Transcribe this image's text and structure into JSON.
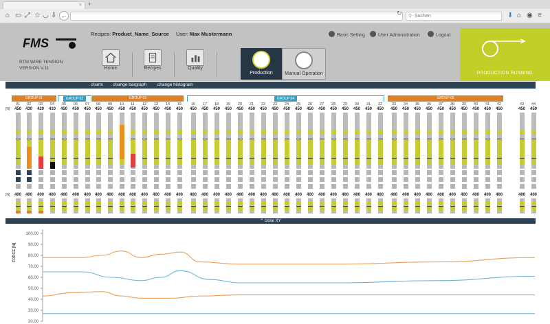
{
  "browser": {
    "tab_title": "",
    "search_placeholder": "Suchen"
  },
  "app": {
    "title_line1": "RTM WIRE TENSION",
    "title_line2": "VERSION V.11",
    "recipes_label": "Recipes:",
    "recipe_name": "Product_Name_Source",
    "user_label": "User:",
    "user_name": "Max Mustermann",
    "nav": [
      {
        "label": "Home",
        "icon": "house-icon"
      },
      {
        "label": "Recipes",
        "icon": "document-icon"
      },
      {
        "label": "Quality",
        "icon": "bar-chart-icon"
      }
    ],
    "production_label": "Production",
    "manual_label": "Manual Operation",
    "basic_setting": "Basic Setting",
    "user_admin": "User Administration",
    "logout": "Logout",
    "status": "PRODUCTION RUNNING"
  },
  "subnav": {
    "charts": "charts",
    "bargraph": "change bargraph",
    "histogram": "change histogram"
  },
  "colors": {
    "accent_lime": "#c3cf29",
    "bar_yellow": "#c6cc34",
    "group_orange": "#d9822b",
    "group_blue": "#3a9ec0",
    "dark_navy": "#2d4456"
  },
  "unit_label": "[N]",
  "groups": [
    {
      "label": "GROUP 01",
      "color": "orange"
    },
    {
      "label": "GROUP 02",
      "color": "blue"
    },
    {
      "label": "GROUP 03",
      "color": "orange"
    },
    {
      "label": "GROUP 04",
      "color": "blue"
    },
    {
      "label": "GROUP 05",
      "color": "orange"
    }
  ],
  "channels": [
    {
      "num": "01",
      "max": "450",
      "min": "400"
    },
    {
      "num": "02",
      "max": "430",
      "min": "400"
    },
    {
      "num": "03",
      "max": "420",
      "min": "400"
    },
    {
      "num": "04",
      "max": "410",
      "min": "400"
    },
    {
      "num": "05",
      "max": "450",
      "min": "400"
    },
    {
      "num": "06",
      "max": "450",
      "min": "400"
    },
    {
      "num": "07",
      "max": "450",
      "min": "400"
    },
    {
      "num": "08",
      "max": "450",
      "min": "400"
    },
    {
      "num": "09",
      "max": "450",
      "min": "400"
    },
    {
      "num": "10",
      "max": "450",
      "min": "400"
    },
    {
      "num": "11",
      "max": "450",
      "min": "400"
    },
    {
      "num": "12",
      "max": "450",
      "min": "400"
    },
    {
      "num": "13",
      "max": "450",
      "min": "400"
    },
    {
      "num": "14",
      "max": "450",
      "min": "400"
    },
    {
      "num": "15",
      "max": "450",
      "min": "400"
    },
    {
      "num": "16",
      "max": "450",
      "min": "400"
    },
    {
      "num": "17",
      "max": "450",
      "min": "400"
    },
    {
      "num": "18",
      "max": "450",
      "min": "400"
    },
    {
      "num": "19",
      "max": "450",
      "min": "400"
    },
    {
      "num": "20",
      "max": "450",
      "min": "400"
    },
    {
      "num": "21",
      "max": "450",
      "min": "400"
    },
    {
      "num": "22",
      "max": "450",
      "min": "400"
    },
    {
      "num": "23",
      "max": "450",
      "min": "400"
    },
    {
      "num": "24",
      "max": "450",
      "min": "400"
    },
    {
      "num": "25",
      "max": "450",
      "min": "400"
    },
    {
      "num": "26",
      "max": "450",
      "min": "400"
    },
    {
      "num": "27",
      "max": "450",
      "min": "400"
    },
    {
      "num": "28",
      "max": "450",
      "min": "400"
    },
    {
      "num": "29",
      "max": "450",
      "min": "400"
    },
    {
      "num": "30",
      "max": "450",
      "min": "400"
    },
    {
      "num": "31",
      "max": "450",
      "min": "400"
    },
    {
      "num": "32",
      "max": "450",
      "min": "400"
    },
    {
      "num": "33",
      "max": "450",
      "min": "400"
    },
    {
      "num": "34",
      "max": "450",
      "min": "400"
    },
    {
      "num": "35",
      "max": "450",
      "min": "400"
    },
    {
      "num": "36",
      "max": "450",
      "min": "400"
    },
    {
      "num": "37",
      "max": "450",
      "min": "400"
    },
    {
      "num": "38",
      "max": "450",
      "min": "400"
    },
    {
      "num": "39",
      "max": "450",
      "min": "400"
    },
    {
      "num": "40",
      "max": "450",
      "min": "400"
    },
    {
      "num": "41",
      "max": "450",
      "min": "400"
    },
    {
      "num": "42",
      "max": "450",
      "min": "400"
    },
    {
      "num": "43",
      "max": "450",
      "min": "400"
    },
    {
      "num": "44",
      "max": "450",
      "min": "400"
    }
  ],
  "close_xy": "close XY",
  "chart_data": {
    "type": "line",
    "ylabel": "FORCE [N]",
    "yticks": [
      "100.00",
      "90.00",
      "80.00",
      "70.00",
      "60.00",
      "50.00",
      "40.00",
      "30.00",
      "20.00"
    ],
    "ylim": [
      20,
      100
    ],
    "xlim": [
      0,
      100
    ],
    "series": [
      {
        "color": "#e8a15a",
        "x": [
          0,
          8,
          12,
          16,
          20,
          24,
          28,
          32,
          40,
          60,
          80,
          100
        ],
        "y": [
          78,
          78,
          80,
          84,
          78,
          81,
          83,
          74,
          72,
          72,
          74,
          78
        ]
      },
      {
        "color": "#6fb2d6",
        "x": [
          0,
          8,
          14,
          20,
          24,
          28,
          34,
          40,
          60,
          80,
          100
        ],
        "y": [
          65,
          65,
          60,
          57,
          60,
          66,
          58,
          55,
          55,
          57,
          61
        ]
      },
      {
        "color": "#e8a15a",
        "x": [
          0,
          6,
          12,
          16,
          20,
          26,
          32,
          40,
          60,
          80,
          100
        ],
        "y": [
          43,
          46,
          47,
          43,
          41,
          41,
          43,
          44,
          44,
          44,
          44
        ]
      },
      {
        "color": "#6fb2d6",
        "x": [
          0,
          100
        ],
        "y": [
          27,
          27
        ]
      }
    ]
  }
}
